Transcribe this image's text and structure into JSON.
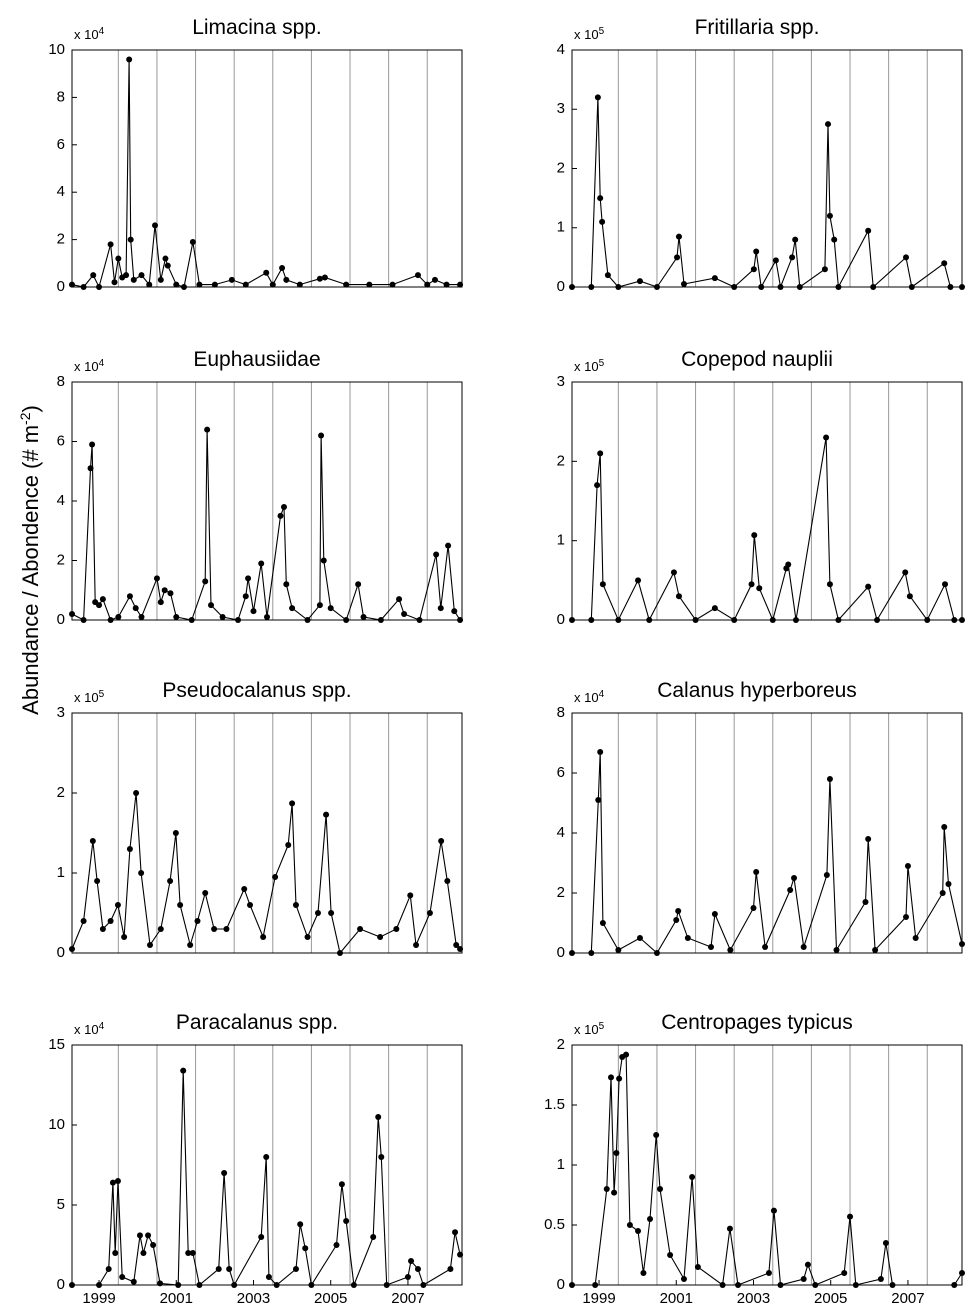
{
  "ylabel": [
    "Abundance / Abondence (# m",
    "-2",
    ")"
  ],
  "chart_data": [
    {
      "type": "line",
      "title": "Limacina spp.",
      "scale_label": {
        "base": "x 10",
        "exp": "4"
      },
      "color": "#000000",
      "markers": true,
      "x": [
        1998.3,
        1998.6,
        1998.85,
        1999.0,
        1999.3,
        1999.4,
        1999.5,
        1999.6,
        1999.7,
        1999.78,
        1999.82,
        1999.9,
        2000.1,
        2000.3,
        2000.45,
        2000.6,
        2000.72,
        2000.78,
        2001.0,
        2001.2,
        2001.43,
        2001.6,
        2002.0,
        2002.44,
        2002.8,
        2003.33,
        2003.5,
        2003.74,
        2003.85,
        2004.2,
        2004.72,
        2004.85,
        2005.4,
        2006.0,
        2006.6,
        2007.26,
        2007.5,
        2007.7,
        2008.0,
        2008.35
      ],
      "values": [
        0.1,
        0,
        0.5,
        0,
        1.8,
        0.2,
        1.2,
        0.4,
        0.5,
        9.6,
        2.0,
        0.3,
        0.5,
        0.1,
        2.6,
        0.3,
        1.2,
        0.9,
        0.1,
        0,
        1.9,
        0.1,
        0.1,
        0.3,
        0.1,
        0.6,
        0.1,
        0.8,
        0.3,
        0.1,
        0.35,
        0.4,
        0.1,
        0.1,
        0.1,
        0.5,
        0.1,
        0.3,
        0.1,
        0.1
      ],
      "xlim": [
        1998.3,
        2008.4
      ],
      "xgrid": [
        1999.5,
        2000.5,
        2001.5,
        2002.5,
        2003.5,
        2004.5,
        2005.5,
        2006.5,
        2007.5
      ],
      "ylim": [
        0,
        10
      ],
      "yticks": [
        0,
        2,
        4,
        6,
        8,
        10
      ]
    },
    {
      "type": "line",
      "title": "Fritillaria spp.",
      "scale_label": {
        "base": "x 10",
        "exp": "5"
      },
      "color": "#000000",
      "markers": true,
      "x": [
        1998.3,
        1998.8,
        1998.97,
        1999.03,
        1999.08,
        1999.23,
        1999.5,
        2000.06,
        2000.5,
        2001.02,
        2001.07,
        2001.2,
        2002.0,
        2002.5,
        2003.01,
        2003.07,
        2003.2,
        2003.58,
        2003.7,
        2004.0,
        2004.08,
        2004.2,
        2004.85,
        2004.93,
        2004.98,
        2005.09,
        2005.2,
        2005.97,
        2006.1,
        2006.95,
        2007.1,
        2007.94,
        2008.1,
        2008.4
      ],
      "values": [
        0,
        0,
        3.2,
        1.5,
        1.1,
        0.2,
        0,
        0.1,
        0,
        0.5,
        0.85,
        0.05,
        0.15,
        0,
        0.3,
        0.6,
        0,
        0.45,
        0,
        0.5,
        0.8,
        0,
        0.3,
        2.75,
        1.2,
        0.8,
        0,
        0.95,
        0,
        0.5,
        0,
        0.4,
        0,
        0
      ],
      "xlim": [
        1998.3,
        2008.4
      ],
      "xgrid": [
        1999.5,
        2000.5,
        2001.5,
        2002.5,
        2003.5,
        2004.5,
        2005.5,
        2006.5,
        2007.5
      ],
      "ylim": [
        0,
        4
      ],
      "yticks": [
        0,
        1,
        2,
        3,
        4
      ]
    },
    {
      "type": "line",
      "title": "Euphausiidae",
      "scale_label": {
        "base": "x 10",
        "exp": "4"
      },
      "color": "#000000",
      "markers": true,
      "x": [
        1998.3,
        1998.6,
        1998.78,
        1998.82,
        1998.9,
        1999.0,
        1999.1,
        1999.3,
        1999.5,
        1999.8,
        1999.95,
        2000.1,
        2000.5,
        2000.6,
        2000.7,
        2000.85,
        2001.0,
        2001.4,
        2001.75,
        2001.8,
        2001.9,
        2002.2,
        2002.6,
        2002.8,
        2002.86,
        2003.0,
        2003.2,
        2003.35,
        2003.7,
        2003.79,
        2003.85,
        2004.0,
        2004.4,
        2004.72,
        2004.75,
        2004.82,
        2005.0,
        2005.4,
        2005.71,
        2005.85,
        2006.3,
        2006.77,
        2006.9,
        2007.3,
        2007.73,
        2007.85,
        2008.04,
        2008.2,
        2008.35
      ],
      "values": [
        0.2,
        0,
        5.1,
        5.9,
        0.6,
        0.5,
        0.7,
        0,
        0.1,
        0.8,
        0.4,
        0.1,
        1.4,
        0.6,
        1.0,
        0.9,
        0.1,
        0,
        1.3,
        6.4,
        0.5,
        0.1,
        0,
        0.8,
        1.4,
        0.3,
        1.9,
        0.1,
        3.5,
        3.8,
        1.2,
        0.4,
        0,
        0.5,
        6.2,
        2.0,
        0.4,
        0,
        1.2,
        0.1,
        0,
        0.7,
        0.2,
        0,
        2.2,
        0.4,
        2.5,
        0.3,
        0
      ],
      "xlim": [
        1998.3,
        2008.4
      ],
      "xgrid": [
        1999.5,
        2000.5,
        2001.5,
        2002.5,
        2003.5,
        2004.5,
        2005.5,
        2006.5,
        2007.5
      ],
      "ylim": [
        0,
        8
      ],
      "yticks": [
        0,
        2,
        4,
        6,
        8
      ]
    },
    {
      "type": "line",
      "title": "Copepod nauplii",
      "scale_label": {
        "base": "x 10",
        "exp": "5"
      },
      "color": "#000000",
      "markers": true,
      "x": [
        1998.3,
        1998.8,
        1998.95,
        1999.03,
        1999.1,
        1999.5,
        2000.01,
        2000.3,
        2000.94,
        2001.07,
        2001.5,
        2002.0,
        2002.5,
        2002.95,
        2003.02,
        2003.15,
        2003.5,
        2003.85,
        2003.9,
        2004.1,
        2004.88,
        2004.98,
        2005.2,
        2005.97,
        2006.2,
        2006.93,
        2007.05,
        2007.5,
        2007.96,
        2008.2,
        2008.4
      ],
      "values": [
        0,
        0,
        1.7,
        2.1,
        0.45,
        0,
        0.5,
        0,
        0.6,
        0.3,
        0,
        0.15,
        0,
        0.45,
        1.07,
        0.4,
        0,
        0.65,
        0.7,
        0,
        2.3,
        0.45,
        0,
        0.42,
        0,
        0.6,
        0.3,
        0,
        0.45,
        0,
        0
      ],
      "xlim": [
        1998.3,
        2008.4
      ],
      "xgrid": [
        1999.5,
        2000.5,
        2001.5,
        2002.5,
        2003.5,
        2004.5,
        2005.5,
        2006.5,
        2007.5
      ],
      "ylim": [
        0,
        3
      ],
      "yticks": [
        0,
        1,
        2,
        3
      ]
    },
    {
      "type": "line",
      "title": "Pseudocalanus spp.",
      "scale_label": {
        "base": "x 10",
        "exp": "5"
      },
      "color": "#000000",
      "markers": true,
      "x": [
        1998.3,
        1998.6,
        1998.84,
        1998.95,
        1999.1,
        1999.3,
        1999.49,
        1999.65,
        1999.8,
        1999.96,
        2000.09,
        2000.32,
        2000.6,
        2000.84,
        2000.99,
        2001.1,
        2001.36,
        2001.55,
        2001.75,
        2001.98,
        2002.3,
        2002.76,
        2002.91,
        2003.25,
        2003.56,
        2003.9,
        2004.0,
        2004.1,
        2004.4,
        2004.67,
        2004.88,
        2005.01,
        2005.24,
        2005.76,
        2006.28,
        2006.7,
        2007.06,
        2007.21,
        2007.57,
        2007.86,
        2008.02,
        2008.25,
        2008.35
      ],
      "values": [
        0.05,
        0.4,
        1.4,
        0.9,
        0.3,
        0.4,
        0.6,
        0.2,
        1.3,
        2.0,
        1.0,
        0.1,
        0.3,
        0.9,
        1.5,
        0.6,
        0.1,
        0.4,
        0.75,
        0.3,
        0.3,
        0.8,
        0.6,
        0.2,
        0.95,
        1.35,
        1.87,
        0.6,
        0.2,
        0.5,
        1.73,
        0.5,
        0,
        0.3,
        0.2,
        0.3,
        0.72,
        0.1,
        0.5,
        1.4,
        0.9,
        0.1,
        0.05
      ],
      "xlim": [
        1998.3,
        2008.4
      ],
      "xgrid": [
        1999.5,
        2000.5,
        2001.5,
        2002.5,
        2003.5,
        2004.5,
        2005.5,
        2006.5,
        2007.5
      ],
      "ylim": [
        0,
        3
      ],
      "yticks": [
        0,
        1,
        2,
        3
      ]
    },
    {
      "type": "line",
      "title": "Calanus hyperboreus",
      "scale_label": {
        "base": "x 10",
        "exp": "4"
      },
      "color": "#000000",
      "markers": true,
      "x": [
        1998.3,
        1998.8,
        1998.98,
        1999.03,
        1999.1,
        1999.5,
        2000.06,
        2000.5,
        2001.0,
        2001.05,
        2001.3,
        2001.9,
        2002.0,
        2002.4,
        2003.0,
        2003.07,
        2003.3,
        2003.95,
        2004.05,
        2004.3,
        2004.9,
        2004.98,
        2005.15,
        2005.9,
        2005.97,
        2006.15,
        2006.95,
        2007.0,
        2007.2,
        2007.9,
        2007.94,
        2008.05,
        2008.4
      ],
      "values": [
        0,
        0,
        5.1,
        6.7,
        1.0,
        0.1,
        0.5,
        0,
        1.1,
        1.4,
        0.5,
        0.2,
        1.3,
        0.1,
        1.5,
        2.7,
        0.2,
        2.1,
        2.5,
        0.2,
        2.6,
        5.8,
        0.1,
        1.7,
        3.8,
        0.1,
        1.2,
        2.9,
        0.5,
        2.0,
        4.2,
        2.3,
        0.3
      ],
      "xlim": [
        1998.3,
        2008.4
      ],
      "xgrid": [
        1999.5,
        2000.5,
        2001.5,
        2002.5,
        2003.5,
        2004.5,
        2005.5,
        2006.5,
        2007.5
      ],
      "ylim": [
        0,
        8
      ],
      "yticks": [
        0,
        2,
        4,
        6,
        8
      ]
    },
    {
      "type": "line",
      "title": "Paracalanus spp.",
      "scale_label": {
        "base": "x 10",
        "exp": "4"
      },
      "color": "#000000",
      "markers": true,
      "x": [
        1998.3,
        1999.0,
        1999.25,
        1999.36,
        1999.42,
        1999.49,
        1999.6,
        1999.9,
        2000.06,
        2000.15,
        2000.27,
        2000.4,
        2000.58,
        2001.05,
        2001.18,
        2001.31,
        2001.43,
        2001.6,
        2002.1,
        2002.24,
        2002.37,
        2002.5,
        2003.2,
        2003.33,
        2003.4,
        2003.6,
        2004.1,
        2004.21,
        2004.34,
        2004.5,
        2005.15,
        2005.29,
        2005.4,
        2005.6,
        2006.1,
        2006.23,
        2006.31,
        2006.45,
        2007.0,
        2007.08,
        2007.26,
        2007.4,
        2008.1,
        2008.22,
        2008.35
      ],
      "values": [
        0,
        0,
        1.0,
        6.4,
        2.0,
        6.5,
        0.5,
        0.2,
        3.1,
        2.0,
        3.1,
        2.5,
        0.1,
        0,
        13.4,
        2.0,
        2.0,
        0,
        1.0,
        7.0,
        1.0,
        0,
        3.0,
        8.0,
        0.5,
        0,
        1.0,
        3.8,
        2.3,
        0,
        2.5,
        6.3,
        4.0,
        0,
        3.0,
        10.5,
        8.0,
        0,
        0.5,
        1.5,
        1.0,
        0,
        1.0,
        3.3,
        1.9
      ],
      "xlim": [
        1998.3,
        2008.4
      ],
      "xticks": [
        1999,
        2001,
        2003,
        2005,
        2007
      ],
      "xgrid": [
        1999.5,
        2000.5,
        2001.5,
        2002.5,
        2003.5,
        2004.5,
        2005.5,
        2006.5,
        2007.5
      ],
      "ylim": [
        0,
        15
      ],
      "yticks": [
        0,
        5,
        10,
        15
      ]
    },
    {
      "type": "line",
      "title": "Centropages typicus",
      "scale_label": {
        "base": "x 10",
        "exp": "5"
      },
      "color": "#000000",
      "markers": true,
      "x": [
        1998.3,
        1998.9,
        1999.2,
        1999.31,
        1999.39,
        1999.45,
        1999.52,
        1999.6,
        1999.7,
        1999.8,
        2000.01,
        2000.15,
        2000.32,
        2000.48,
        2000.58,
        2000.84,
        2001.2,
        2001.41,
        2001.56,
        2002.2,
        2002.39,
        2002.6,
        2003.4,
        2003.53,
        2003.7,
        2004.3,
        2004.41,
        2004.6,
        2005.35,
        2005.5,
        2005.65,
        2006.3,
        2006.43,
        2006.6,
        2008.2,
        2008.4
      ],
      "values": [
        0,
        0,
        0.8,
        1.73,
        0.77,
        1.1,
        1.72,
        1.9,
        1.92,
        0.5,
        0.45,
        0.1,
        0.55,
        1.25,
        0.8,
        0.25,
        0.05,
        0.9,
        0.15,
        0,
        0.47,
        0,
        0.1,
        0.62,
        0,
        0.05,
        0.17,
        0,
        0.1,
        0.57,
        0,
        0.05,
        0.35,
        0,
        0,
        0.1
      ],
      "xlim": [
        1998.3,
        2008.4
      ],
      "xticks": [
        1999,
        2001,
        2003,
        2005,
        2007
      ],
      "xgrid": [
        1999.5,
        2000.5,
        2001.5,
        2002.5,
        2003.5,
        2004.5,
        2005.5,
        2006.5,
        2007.5
      ],
      "ylim": [
        0,
        2
      ],
      "yticks": [
        0,
        0.5,
        1,
        1.5,
        2
      ]
    }
  ]
}
